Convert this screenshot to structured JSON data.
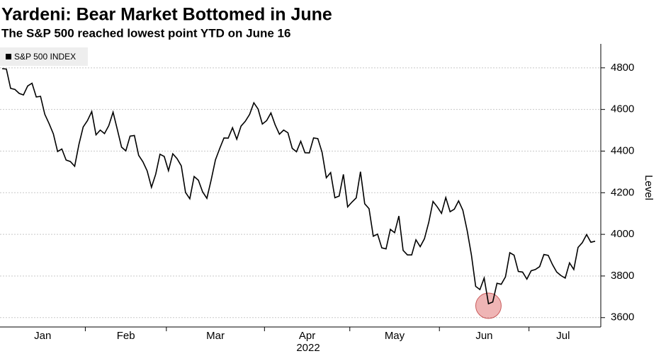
{
  "chart_data": {
    "type": "line",
    "title": "Yardeni: Bear Market Bottomed in June",
    "subtitle": "The S&P 500 reached lowest point YTD on June 16",
    "x_label": "2022",
    "y_label": "Level",
    "categories": [
      "Jan",
      null,
      null,
      null,
      null,
      null,
      null,
      null,
      null,
      null,
      null,
      null,
      null,
      null,
      null,
      null,
      null,
      null,
      null,
      null,
      "Feb",
      null,
      null,
      null,
      null,
      null,
      null,
      null,
      null,
      null,
      null,
      null,
      null,
      null,
      null,
      null,
      null,
      null,
      null,
      "Mar",
      null,
      null,
      null,
      null,
      null,
      null,
      null,
      null,
      null,
      null,
      null,
      null,
      null,
      null,
      null,
      null,
      null,
      null,
      null,
      null,
      null,
      null,
      "Apr",
      null,
      null,
      null,
      null,
      null,
      null,
      null,
      null,
      null,
      null,
      null,
      null,
      null,
      null,
      null,
      null,
      null,
      null,
      null,
      "May",
      null,
      null,
      null,
      null,
      null,
      null,
      null,
      null,
      null,
      null,
      null,
      null,
      null,
      null,
      null,
      null,
      null,
      null,
      null,
      null,
      "Jun",
      null,
      null,
      null,
      null,
      null,
      null,
      null,
      null,
      null,
      null,
      null,
      null,
      null,
      null,
      null,
      null,
      null,
      null,
      null,
      null,
      "Jul",
      null,
      null,
      null,
      null,
      null,
      null,
      null,
      null,
      null,
      null,
      null,
      null,
      null,
      null,
      null
    ],
    "series": [
      {
        "name": "S&P 500 INDEX",
        "color": "#000000",
        "values": [
          4796,
          4794,
          4701,
          4696,
          4677,
          4670,
          4713,
          4726,
          4660,
          4663,
          4577,
          4533,
          4483,
          4398,
          4410,
          4357,
          4350,
          4327,
          4432,
          4516,
          4546,
          4590,
          4478,
          4501,
          4484,
          4522,
          4587,
          4504,
          4419,
          4401,
          4472,
          4475,
          4380,
          4349,
          4305,
          4226,
          4289,
          4385,
          4374,
          4306,
          4387,
          4364,
          4329,
          4201,
          4171,
          4278,
          4260,
          4204,
          4173,
          4262,
          4358,
          4412,
          4463,
          4462,
          4512,
          4457,
          4520,
          4543,
          4576,
          4632,
          4602,
          4530,
          4546,
          4583,
          4526,
          4481,
          4501,
          4488,
          4413,
          4397,
          4447,
          4392,
          4391,
          4463,
          4460,
          4394,
          4272,
          4297,
          4176,
          4184,
          4288,
          4132,
          4155,
          4175,
          4301,
          4147,
          4123,
          3991,
          4001,
          3935,
          3930,
          4024,
          4008,
          4088,
          3923,
          3901,
          3901,
          3974,
          3941,
          3979,
          4058,
          4158,
          4132,
          4101,
          4177,
          4109,
          4121,
          4161,
          4116,
          4018,
          3901,
          3750,
          3735,
          3790,
          3667,
          3675,
          3765,
          3760,
          3796,
          3912,
          3900,
          3822,
          3819,
          3785,
          3825,
          3831,
          3845,
          3903,
          3899,
          3855,
          3819,
          3802,
          3790,
          3863,
          3831,
          3937,
          3960,
          3999,
          3962,
          3967
        ]
      }
    ],
    "ylim": [
      3555,
      4915
    ],
    "yticks": [
      3600,
      3800,
      4000,
      4200,
      4400,
      4600,
      4800
    ],
    "grid": true,
    "legend": "top-left"
  }
}
